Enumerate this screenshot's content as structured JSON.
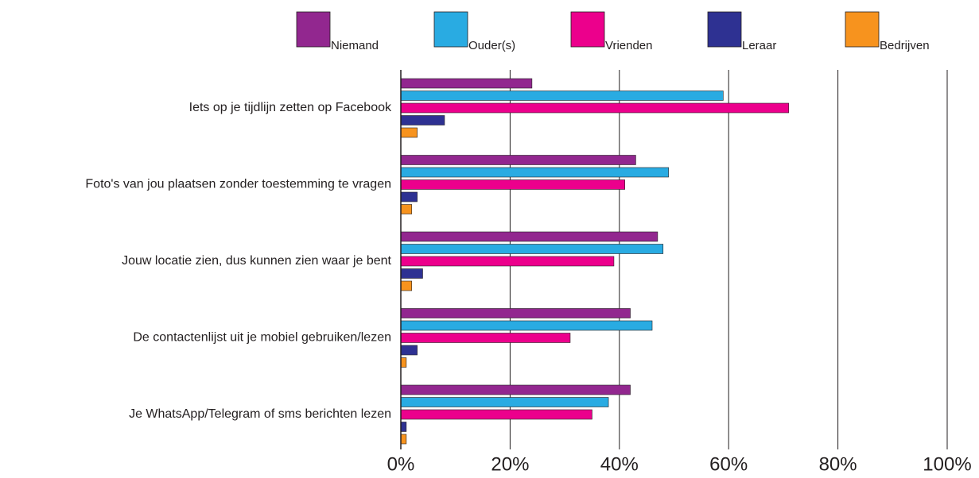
{
  "chart_data": {
    "type": "barh",
    "categories": [
      "Iets op je tijdlijn zetten op Facebook",
      "Foto's van jou plaatsen zonder toestemming te vragen",
      "Jouw locatie zien, dus kunnen zien waar je bent",
      "De contactenlijst uit je mobiel gebruiken/lezen",
      "Je WhatsApp/Telegram of sms berichten lezen"
    ],
    "series": [
      {
        "name": "Niemand",
        "color": "#92278f",
        "values": [
          24,
          43,
          47,
          42,
          42
        ]
      },
      {
        "name": "Ouder(s)",
        "color": "#29abe2",
        "values": [
          59,
          49,
          48,
          46,
          38
        ]
      },
      {
        "name": "Vrienden",
        "color": "#ec008c",
        "values": [
          71,
          41,
          39,
          31,
          35
        ]
      },
      {
        "name": "Leraar",
        "color": "#2e3192",
        "values": [
          8,
          3,
          4,
          3,
          1
        ]
      },
      {
        "name": "Bedrijven",
        "color": "#f7931e",
        "values": [
          3,
          2,
          2,
          1,
          1
        ]
      }
    ],
    "xlim": [
      0,
      100
    ],
    "xticks": [
      {
        "value": 0,
        "label": "0%"
      },
      {
        "value": 20,
        "label": "20%"
      },
      {
        "value": 40,
        "label": "40%"
      },
      {
        "value": 60,
        "label": "60%"
      },
      {
        "value": 80,
        "label": "80%"
      },
      {
        "value": 100,
        "label": "100%"
      }
    ],
    "grid": true,
    "legend": "top"
  }
}
